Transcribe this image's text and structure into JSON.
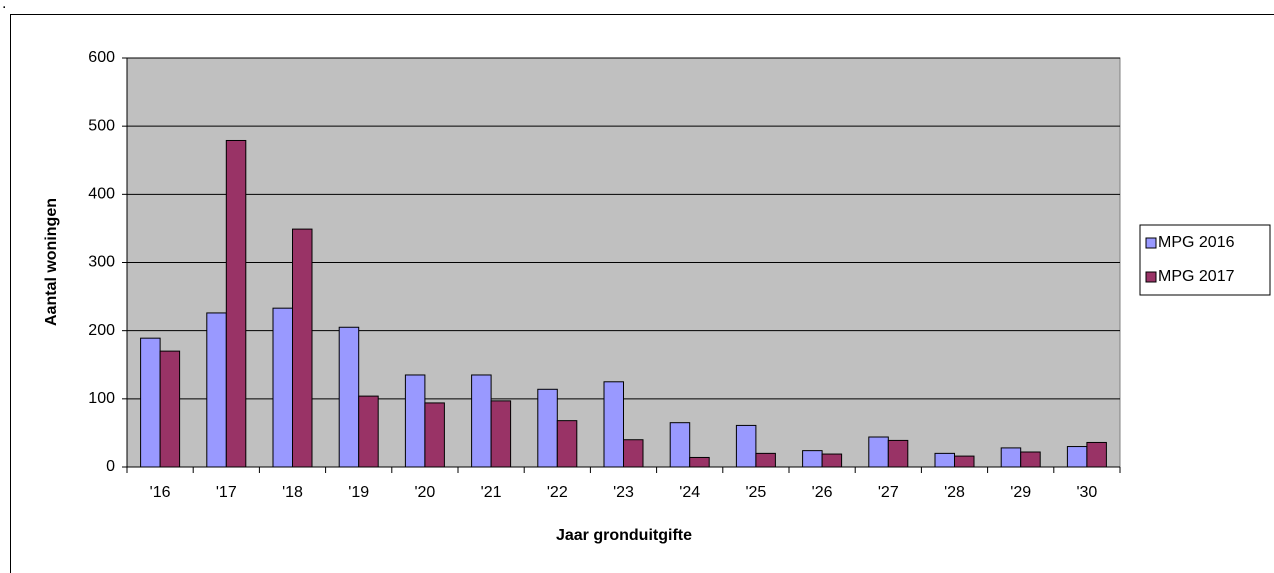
{
  "caption": ".",
  "chart_data": {
    "type": "bar",
    "xlabel": "Jaar gronduitgifte",
    "ylabel": "Aantal woningen",
    "categories": [
      "'16",
      "'17",
      "'18",
      "'19",
      "'20",
      "'21",
      "'22",
      "'23",
      "'24",
      "'25",
      "'26",
      "'27",
      "'28",
      "'29",
      "'30"
    ],
    "series": [
      {
        "name": "MPG 2016",
        "color": "#9999ff",
        "values": [
          189,
          226,
          233,
          205,
          135,
          135,
          114,
          125,
          65,
          61,
          24,
          44,
          20,
          28,
          30
        ]
      },
      {
        "name": "MPG 2017",
        "color": "#993366",
        "values": [
          170,
          479,
          349,
          104,
          94,
          97,
          68,
          40,
          14,
          20,
          19,
          39,
          16,
          22,
          36
        ]
      }
    ],
    "ylim": [
      0,
      600
    ],
    "yticks": [
      0,
      100,
      200,
      300,
      400,
      500,
      600
    ],
    "grid": true,
    "legend": "right",
    "plot_background": "#c0c0c0"
  }
}
